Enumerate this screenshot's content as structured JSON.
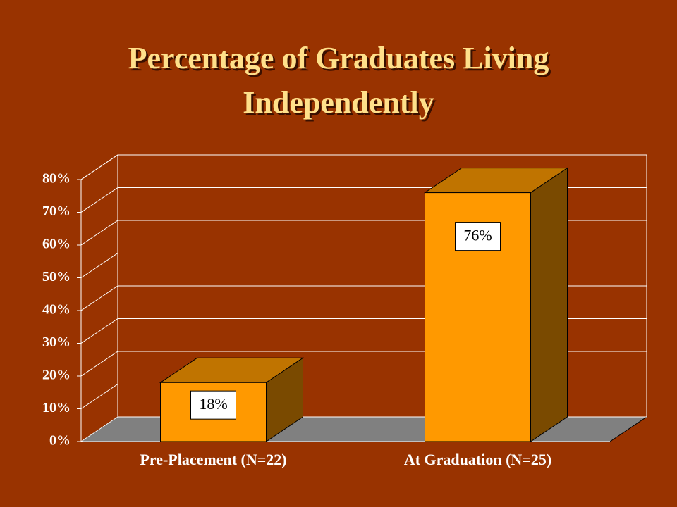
{
  "chart_data": {
    "type": "bar3d",
    "title": "Percentage of Graduates Living Independently",
    "categories": [
      "Pre-Placement (N=22)",
      "At Graduation (N=25)"
    ],
    "values": [
      18,
      76
    ],
    "value_labels": [
      "18%",
      "76%"
    ],
    "color": "#ff9900",
    "ylim": [
      0,
      80
    ],
    "yticks": [
      {
        "value": 0,
        "label": "0%"
      },
      {
        "value": 10,
        "label": "10%"
      },
      {
        "value": 20,
        "label": "20%"
      },
      {
        "value": 30,
        "label": "30%"
      },
      {
        "value": 40,
        "label": "40%"
      },
      {
        "value": 50,
        "label": "50%"
      },
      {
        "value": 60,
        "label": "60%"
      },
      {
        "value": 70,
        "label": "70%"
      },
      {
        "value": 80,
        "label": "80%"
      }
    ],
    "grid": true
  }
}
